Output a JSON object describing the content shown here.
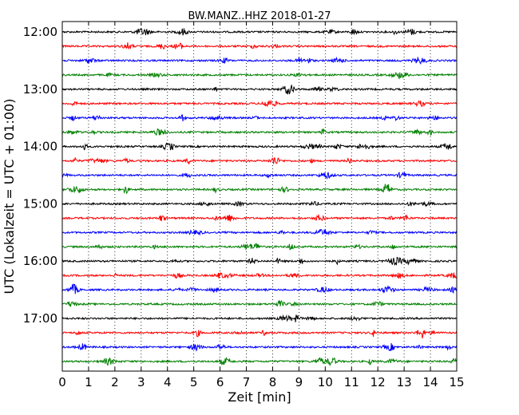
{
  "chart_data": {
    "type": "line",
    "subtype": "helicorder",
    "title": "BW.MANZ..HHZ 2018-01-27",
    "xlabel": "Zeit  [min]",
    "ylabel": "UTC (Lokalzeit = UTC + 01:00)",
    "xlim": [
      0,
      15
    ],
    "x_ticks": [
      0,
      1,
      2,
      3,
      4,
      5,
      6,
      7,
      8,
      9,
      10,
      11,
      12,
      13,
      14,
      15
    ],
    "x_grid": "dotted",
    "y_ticks": [
      "12:00",
      "13:00",
      "14:00",
      "15:00",
      "16:00",
      "17:00"
    ],
    "trace_interval_min": 15,
    "trace_start": "12:00",
    "trace_count": 24,
    "color_cycle": [
      "#000000",
      "#ff0000",
      "#0000ff",
      "#008000"
    ],
    "traces": [
      {
        "start": "12:00",
        "color": "#000000"
      },
      {
        "start": "12:15",
        "color": "#ff0000"
      },
      {
        "start": "12:30",
        "color": "#0000ff"
      },
      {
        "start": "12:45",
        "color": "#008000"
      },
      {
        "start": "13:00",
        "color": "#000000"
      },
      {
        "start": "13:15",
        "color": "#ff0000"
      },
      {
        "start": "13:30",
        "color": "#0000ff"
      },
      {
        "start": "13:45",
        "color": "#008000"
      },
      {
        "start": "14:00",
        "color": "#000000"
      },
      {
        "start": "14:15",
        "color": "#ff0000"
      },
      {
        "start": "14:30",
        "color": "#0000ff"
      },
      {
        "start": "14:45",
        "color": "#008000"
      },
      {
        "start": "15:00",
        "color": "#000000"
      },
      {
        "start": "15:15",
        "color": "#ff0000"
      },
      {
        "start": "15:30",
        "color": "#0000ff"
      },
      {
        "start": "15:45",
        "color": "#008000"
      },
      {
        "start": "16:00",
        "color": "#000000"
      },
      {
        "start": "16:15",
        "color": "#ff0000"
      },
      {
        "start": "16:30",
        "color": "#0000ff"
      },
      {
        "start": "16:45",
        "color": "#008000"
      },
      {
        "start": "17:00",
        "color": "#000000"
      },
      {
        "start": "17:15",
        "color": "#ff0000"
      },
      {
        "start": "17:30",
        "color": "#0000ff"
      },
      {
        "start": "17:45",
        "color": "#008000"
      }
    ]
  }
}
